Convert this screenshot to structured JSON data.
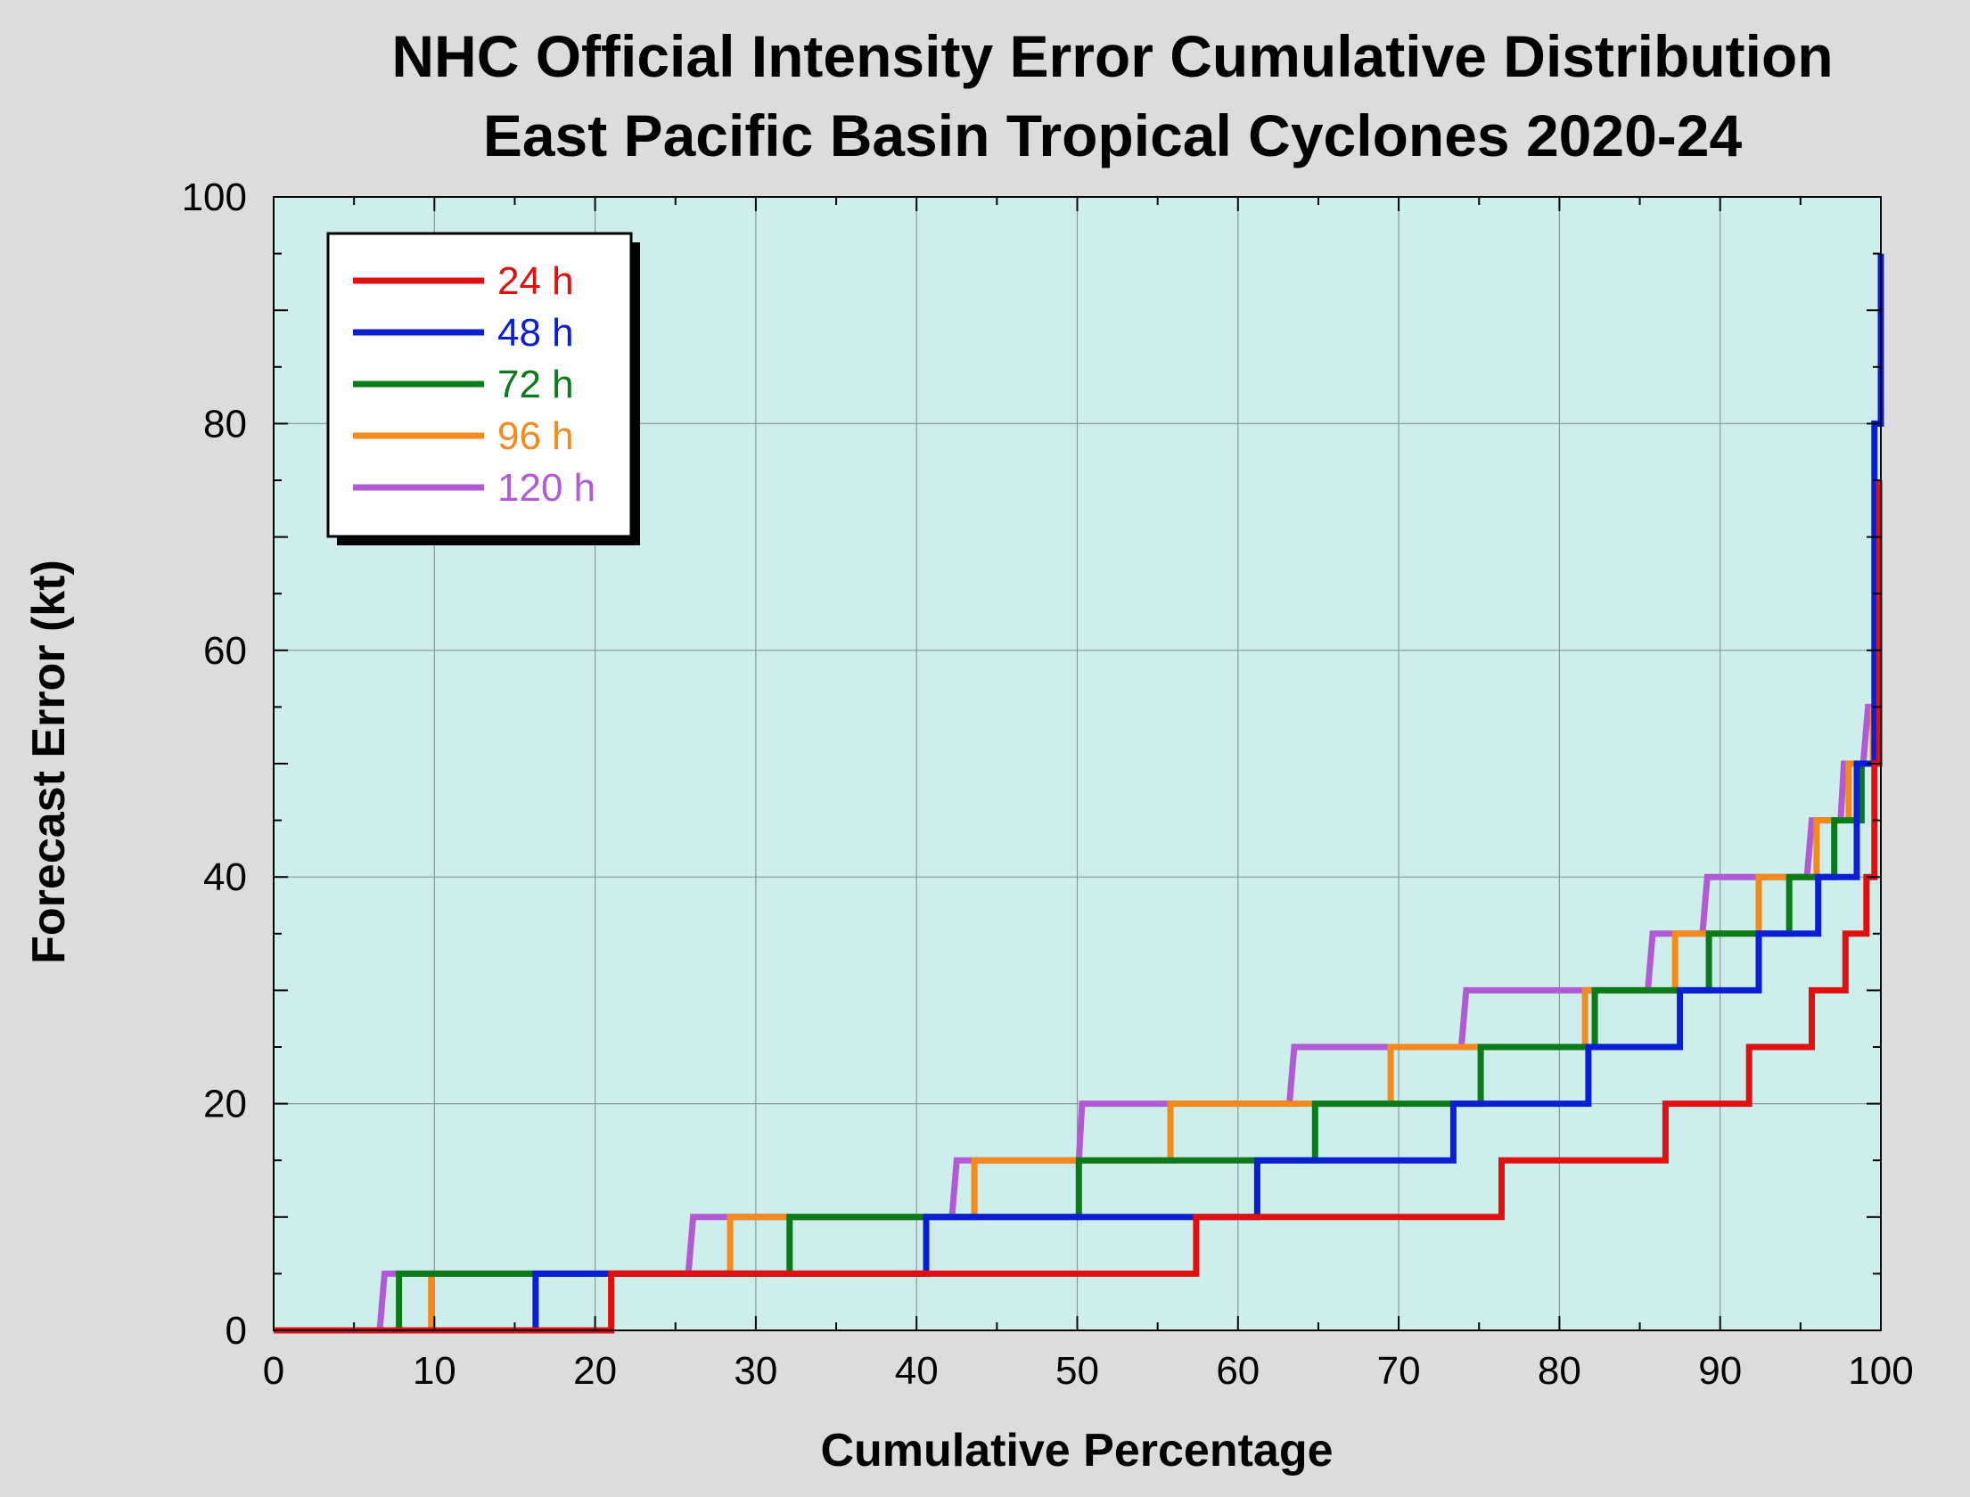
{
  "chart_data": {
    "type": "line",
    "title": "NHC Official Intensity Error Cumulative Distribution",
    "subtitle": "East Pacific Basin Tropical Cyclones 2020-24",
    "xlabel": "Cumulative Percentage",
    "ylabel": "Forecast Error (kt)",
    "xlim": [
      0,
      100
    ],
    "ylim": [
      0,
      100
    ],
    "x_ticks": [
      "0",
      "10",
      "20",
      "30",
      "40",
      "50",
      "60",
      "70",
      "80",
      "90",
      "100"
    ],
    "y_ticks": [
      "0",
      "20",
      "40",
      "60",
      "80",
      "100"
    ],
    "grid": true,
    "legend_position": "top-left",
    "colors": {
      "plot_background": "#cdeeea",
      "page_background": "#dcdcdc"
    },
    "series": [
      {
        "name": "24 h",
        "color": "#e01010",
        "x": [
          0,
          21.0,
          21.0,
          57.4,
          57.4,
          76.4,
          76.4,
          86.6,
          86.6,
          91.8,
          91.8,
          95.7,
          95.7,
          97.8,
          97.8,
          99.1,
          99.1,
          99.6,
          99.6,
          99.9,
          99.9
        ],
        "y": [
          0,
          0,
          5,
          5,
          10,
          10,
          15,
          15,
          20,
          20,
          25,
          25,
          30,
          30,
          35,
          35,
          40,
          40,
          50,
          50,
          75
        ]
      },
      {
        "name": "48 h",
        "color": "#0a1ed4",
        "x": [
          0,
          16.3,
          16.3,
          40.6,
          40.6,
          61.2,
          61.2,
          73.4,
          73.4,
          81.8,
          81.8,
          87.5,
          87.5,
          92.4,
          92.4,
          96.1,
          96.1,
          98.5,
          98.5,
          99.6,
          99.6,
          100,
          100
        ],
        "y": [
          0,
          0,
          5,
          5,
          10,
          10,
          15,
          15,
          20,
          20,
          25,
          25,
          30,
          30,
          35,
          35,
          40,
          40,
          50,
          50,
          80,
          80,
          95
        ]
      },
      {
        "name": "72 h",
        "color": "#0a7a1a",
        "x": [
          0,
          7.8,
          7.8,
          32.1,
          32.1,
          50.1,
          50.1,
          64.8,
          64.8,
          75.1,
          75.1,
          82.2,
          82.2,
          89.3,
          89.3,
          94.3,
          94.3,
          97.1,
          97.1,
          98.8,
          98.8,
          99.8,
          99.8
        ],
        "y": [
          0,
          0,
          5,
          5,
          10,
          10,
          15,
          15,
          20,
          20,
          25,
          25,
          30,
          30,
          35,
          35,
          40,
          40,
          45,
          45,
          50,
          50,
          60
        ]
      },
      {
        "name": "96 h",
        "color": "#f28a1e",
        "x": [
          0,
          9.8,
          9.8,
          28.4,
          28.4,
          43.6,
          43.6,
          55.8,
          55.8,
          69.5,
          69.5,
          81.6,
          81.6,
          87.2,
          87.2,
          92.4,
          92.4,
          96.0,
          96.0,
          98.0,
          98.0,
          99.5,
          99.5
        ],
        "y": [
          0,
          0,
          5,
          5,
          10,
          10,
          15,
          15,
          20,
          20,
          25,
          25,
          30,
          30,
          35,
          35,
          40,
          40,
          45,
          45,
          50,
          50,
          55
        ]
      },
      {
        "name": "120 h",
        "color": "#b25ad6",
        "x": [
          0,
          6.6,
          6.9,
          25.8,
          26.1,
          42.2,
          42.5,
          50.1,
          50.3,
          63.2,
          63.5,
          73.9,
          74.2,
          85.5,
          85.8,
          88.9,
          89.2,
          95.4,
          95.7,
          97.5,
          97.7,
          98.9,
          99.2,
          99.7,
          99.7
        ],
        "y": [
          0,
          0,
          5,
          5,
          10,
          10,
          15,
          15,
          20,
          20,
          25,
          25,
          30,
          30,
          35,
          35,
          40,
          40,
          45,
          45,
          50,
          50,
          55,
          55,
          65
        ]
      }
    ]
  }
}
